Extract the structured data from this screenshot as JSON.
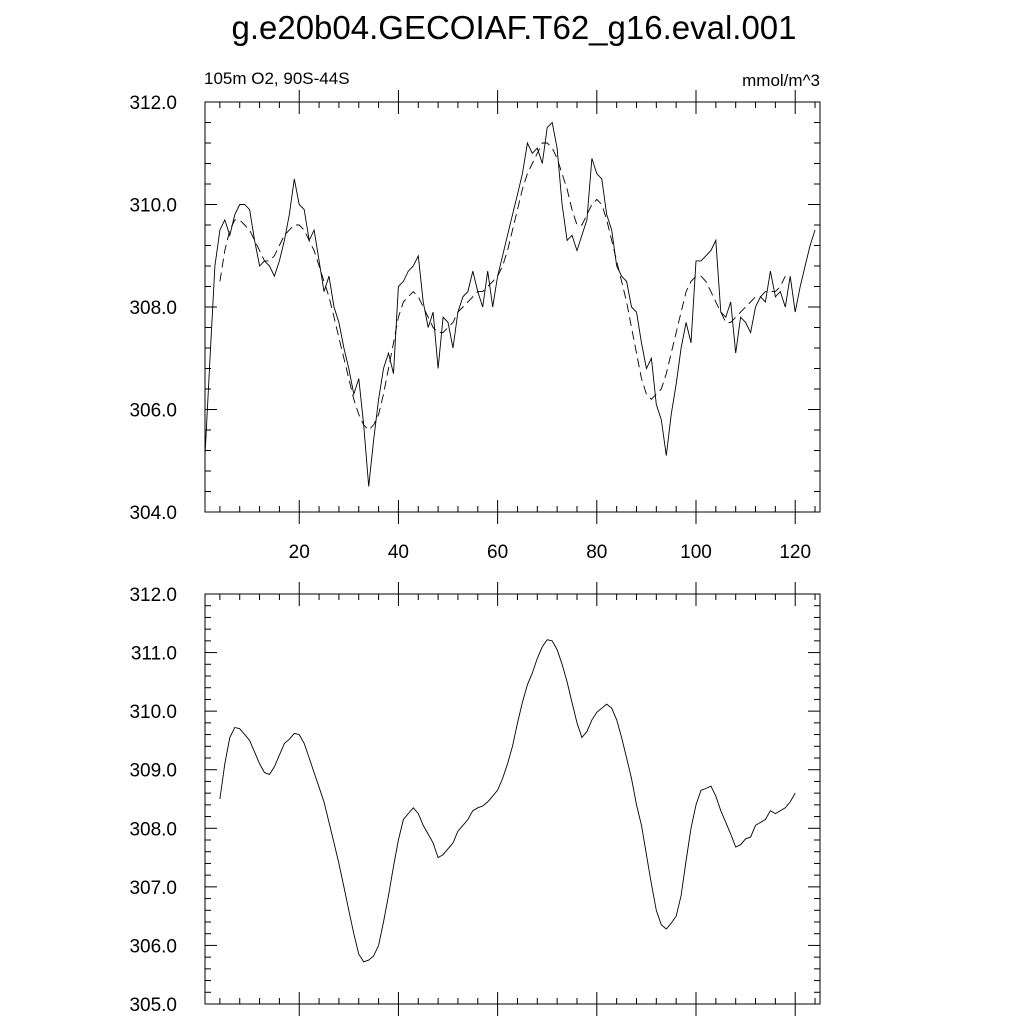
{
  "title": "g.e20b04.GECOIAF.T62_g16.eval.001",
  "left_label": "105m O2, 90S-44S",
  "right_label": "mmol/m^3",
  "colors": {
    "line": "#000000",
    "background": "#ffffff"
  },
  "chart_data": [
    {
      "type": "line",
      "x_start": 1,
      "xlim": [
        1,
        125
      ],
      "ylim": [
        304.0,
        312.0
      ],
      "ytick_labels": [
        "304.0",
        "306.0",
        "308.0",
        "310.0",
        "312.0"
      ],
      "yticks": [
        304,
        306,
        308,
        310,
        312
      ],
      "xtick_labels": [
        "20",
        "40",
        "60",
        "80",
        "100",
        "120"
      ],
      "xticks": [
        20,
        40,
        60,
        80,
        100,
        120
      ],
      "series": [
        {
          "style": "solid",
          "values": [
            305.1,
            307.0,
            308.8,
            309.5,
            309.7,
            309.4,
            309.8,
            310.0,
            310.0,
            309.9,
            309.3,
            308.8,
            308.9,
            308.8,
            308.6,
            308.9,
            309.3,
            309.8,
            310.5,
            310.0,
            309.9,
            309.3,
            309.5,
            308.9,
            308.3,
            308.6,
            308.0,
            307.7,
            307.2,
            306.8,
            306.3,
            306.6,
            305.7,
            304.5,
            305.4,
            306.2,
            306.8,
            307.1,
            306.7,
            308.4,
            308.5,
            308.7,
            308.8,
            309.0,
            308.1,
            307.6,
            307.9,
            306.8,
            307.8,
            307.7,
            307.2,
            307.9,
            308.2,
            308.3,
            308.7,
            308.3,
            308.0,
            308.7,
            308.0,
            308.6,
            309.0,
            309.4,
            309.8,
            310.2,
            310.6,
            311.2,
            311.0,
            311.1,
            310.8,
            311.5,
            311.6,
            311.1,
            310.0,
            309.3,
            309.4,
            309.1,
            309.4,
            309.7,
            310.9,
            310.6,
            310.5,
            309.8,
            309.5,
            308.8,
            308.6,
            308.5,
            308.0,
            307.9,
            307.3,
            306.8,
            307.0,
            306.1,
            305.8,
            305.1,
            305.9,
            306.5,
            307.2,
            307.7,
            307.3,
            308.9,
            308.9,
            309.0,
            309.1,
            309.3,
            307.9,
            307.8,
            308.1,
            307.1,
            307.8,
            307.7,
            307.5,
            308.0,
            308.2,
            308.1,
            308.7,
            308.2,
            308.3,
            308.0,
            308.6,
            307.9,
            308.4,
            308.8,
            309.2,
            309.5
          ]
        },
        {
          "style": "dashed",
          "values": [
            null,
            null,
            null,
            308.5,
            309.1,
            309.5,
            309.7,
            309.7,
            309.6,
            309.5,
            309.3,
            309.1,
            308.9,
            308.9,
            309.0,
            309.2,
            309.4,
            309.5,
            309.6,
            309.6,
            309.5,
            309.3,
            309.1,
            308.8,
            308.5,
            308.2,
            307.8,
            307.4,
            307.0,
            306.6,
            306.2,
            305.9,
            305.7,
            305.6,
            305.7,
            305.9,
            306.3,
            306.8,
            307.3,
            307.8,
            308.1,
            308.2,
            308.3,
            308.2,
            308.0,
            307.8,
            307.6,
            307.5,
            307.5,
            307.6,
            307.7,
            307.9,
            308.0,
            308.1,
            308.2,
            308.3,
            308.3,
            308.4,
            308.5,
            308.6,
            308.8,
            309.1,
            309.5,
            309.9,
            310.3,
            310.6,
            310.8,
            311.0,
            311.2,
            311.2,
            311.1,
            310.9,
            310.6,
            310.3,
            309.9,
            309.6,
            309.6,
            309.8,
            310.0,
            310.1,
            310.0,
            309.7,
            309.3,
            308.9,
            308.5,
            308.1,
            307.6,
            307.1,
            306.6,
            306.3,
            306.2,
            306.3,
            306.4,
            306.7,
            307.1,
            307.5,
            307.9,
            308.3,
            308.5,
            308.6,
            308.6,
            308.5,
            308.3,
            308.1,
            307.9,
            307.7,
            307.7,
            307.8,
            307.9,
            308.0,
            308.1,
            308.2,
            308.2,
            308.3,
            308.3,
            308.3,
            308.4,
            308.6,
            null,
            null,
            null,
            null,
            null,
            null,
            null
          ]
        }
      ]
    },
    {
      "type": "line",
      "x_start": 1,
      "xlim": [
        1,
        125
      ],
      "ylim": [
        305.0,
        312.0
      ],
      "ytick_labels": [
        "305.0",
        "306.0",
        "307.0",
        "308.0",
        "309.0",
        "310.0",
        "311.0",
        "312.0"
      ],
      "yticks": [
        305,
        306,
        307,
        308,
        309,
        310,
        311,
        312
      ],
      "xticks": [
        20,
        40,
        60,
        80,
        100,
        120
      ],
      "series": [
        {
          "style": "solid",
          "values": [
            null,
            null,
            null,
            308.5,
            309.1,
            309.55,
            309.72,
            309.7,
            309.6,
            309.5,
            309.3,
            309.1,
            308.95,
            308.92,
            309.05,
            309.25,
            309.45,
            309.52,
            309.62,
            309.6,
            309.45,
            309.2,
            308.95,
            308.7,
            308.45,
            308.1,
            307.75,
            307.4,
            307.0,
            306.6,
            306.2,
            305.85,
            305.72,
            305.75,
            305.82,
            306.0,
            306.4,
            306.85,
            307.35,
            307.8,
            308.15,
            308.25,
            308.35,
            308.25,
            308.05,
            307.9,
            307.75,
            307.5,
            307.55,
            307.65,
            307.75,
            307.95,
            308.05,
            308.15,
            308.3,
            308.35,
            308.38,
            308.45,
            308.55,
            308.65,
            308.85,
            309.1,
            309.4,
            309.8,
            310.15,
            310.45,
            310.65,
            310.9,
            311.1,
            311.22,
            311.2,
            311.05,
            310.8,
            310.5,
            310.15,
            309.8,
            309.55,
            309.65,
            309.85,
            309.98,
            310.05,
            310.12,
            310.05,
            309.85,
            309.55,
            309.2,
            308.85,
            308.4,
            308.05,
            307.55,
            307.05,
            306.6,
            306.35,
            306.28,
            306.38,
            306.5,
            306.85,
            307.45,
            308.0,
            308.4,
            308.65,
            308.68,
            308.72,
            308.55,
            308.3,
            308.1,
            307.9,
            307.68,
            307.72,
            307.82,
            307.85,
            308.05,
            308.1,
            308.15,
            308.3,
            308.25,
            308.3,
            308.35,
            308.45,
            308.6,
            null,
            null,
            null,
            null,
            null,
            null,
            null
          ]
        }
      ]
    }
  ]
}
